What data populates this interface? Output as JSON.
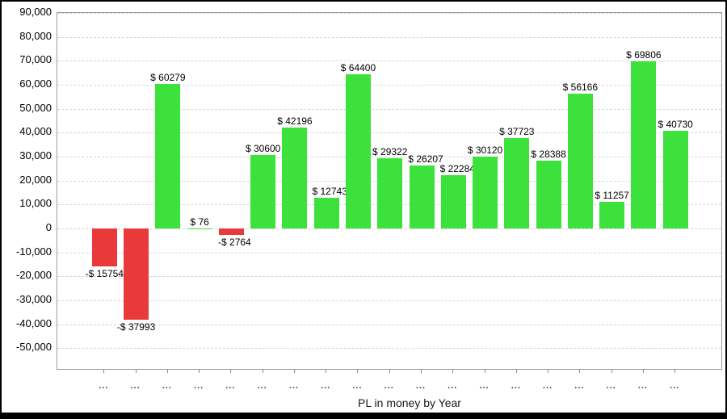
{
  "chart_data": {
    "type": "bar",
    "title": "PL in money by Year",
    "categories": [
      "...",
      "...",
      "...",
      "...",
      "...",
      "...",
      "...",
      "...",
      "...",
      "...",
      "...",
      "...",
      "...",
      "...",
      "...",
      "...",
      "...",
      "...",
      "..."
    ],
    "values": [
      -15754,
      -37993,
      60279,
      76,
      -2764,
      30600,
      42196,
      12743,
      64400,
      29322,
      26207,
      22284,
      30120,
      37723,
      28388,
      56166,
      11257,
      69806,
      40730
    ],
    "bar_labels": [
      "-$ 15754",
      "-$ 37993",
      "$ 60279",
      "$ 76",
      "-$ 2764",
      "$ 30600",
      "$ 42196",
      "$ 12743",
      "$ 64400",
      "$ 29322",
      "$ 26207",
      "$ 22284",
      "$ 30120",
      "$ 37723",
      "$ 28388",
      "$ 56166",
      "$ 11257",
      "$ 69806",
      "$ 40730"
    ],
    "y_axis": {
      "min": -50000,
      "max": 90000,
      "step": 10000,
      "tick_labels": [
        "90,000",
        "80,000",
        "70,000",
        "60,000",
        "50,000",
        "40,000",
        "30,000",
        "20,000",
        "10,000",
        "0",
        "-10,000",
        "-20,000",
        "-30,000",
        "-40,000",
        "-50,000"
      ]
    },
    "x_axis": {
      "tick_label_text": "...",
      "label": "PL in money by Year"
    },
    "grid": "horizontal-dashed",
    "legend": "none",
    "colors": {
      "positive": "#3ce13c",
      "negative": "#e8393b",
      "grid": "#d6d6d6",
      "axis_frame": "#9c9c9c",
      "text": "#000000"
    }
  }
}
